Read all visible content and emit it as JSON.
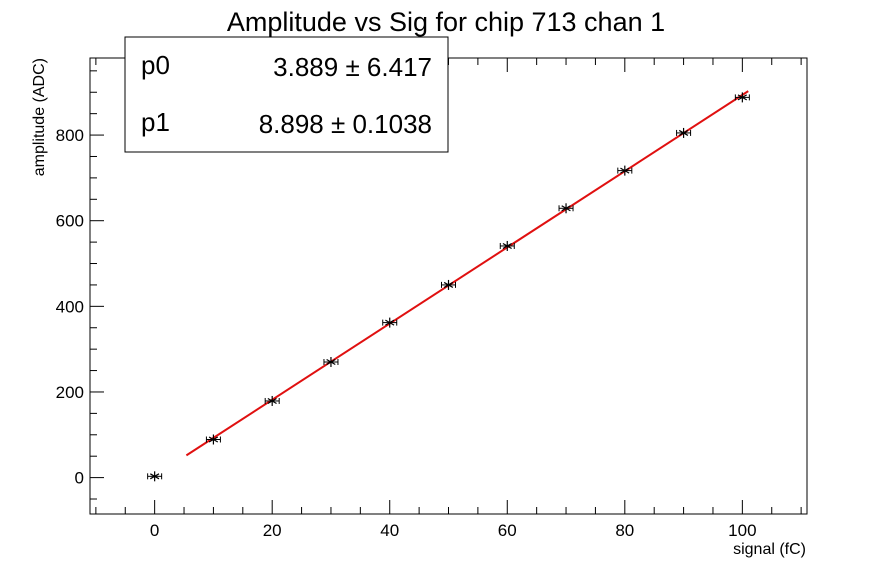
{
  "chart_data": {
    "type": "scatter",
    "title": "Amplitude vs Sig for chip 713 chan 1",
    "xlabel": "signal (fC)",
    "ylabel": "amplitude (ADC)",
    "xlim": [
      -11,
      111
    ],
    "ylim": [
      -85,
      980
    ],
    "x_ticks": [
      0,
      20,
      40,
      60,
      80,
      100
    ],
    "y_ticks": [
      0,
      200,
      400,
      600,
      800
    ],
    "grid": false,
    "series": [
      {
        "marker": "star",
        "color": "#000000",
        "x": [
          0,
          10,
          20,
          30,
          40,
          50,
          60,
          70,
          80,
          90,
          100
        ],
        "y": [
          3,
          89,
          179,
          270,
          362,
          450,
          541,
          629,
          717,
          805,
          888
        ]
      }
    ],
    "fit": {
      "color": "#e01010",
      "p0": 3.889,
      "p1": 8.898,
      "x_range": [
        5.4,
        101
      ]
    },
    "stats_box": {
      "position": "top-left",
      "rows": [
        {
          "name": "p0",
          "value": "3.889 ± 6.417"
        },
        {
          "name": "p1",
          "value": "8.898 ± 0.1038"
        }
      ]
    }
  }
}
